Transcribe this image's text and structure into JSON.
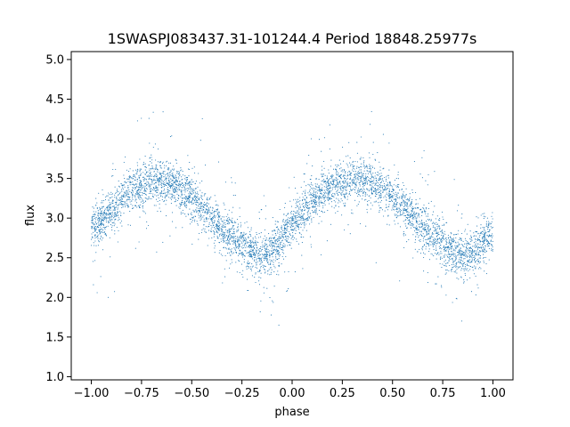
{
  "chart_data": {
    "type": "scatter",
    "title": "1SWASPJ083437.31-101244.4 Period 18848.25977s",
    "xlabel": "phase",
    "ylabel": "flux",
    "xlim": [
      -1.1,
      1.1
    ],
    "ylim": [
      0.96,
      5.1
    ],
    "x_ticks": [
      -1.0,
      -0.75,
      -0.5,
      -0.25,
      0.0,
      0.25,
      0.5,
      0.75,
      1.0
    ],
    "x_tick_labels": [
      "−1.00",
      "−0.75",
      "−0.50",
      "−0.25",
      "0.00",
      "0.25",
      "0.50",
      "0.75",
      "1.00"
    ],
    "y_ticks": [
      1.0,
      1.5,
      2.0,
      2.5,
      3.0,
      3.5,
      4.0,
      4.5,
      5.0
    ],
    "y_tick_labels": [
      "1.0",
      "1.5",
      "2.0",
      "2.5",
      "3.0",
      "3.5",
      "4.0",
      "4.5",
      "5.0"
    ],
    "grid": false,
    "legend": "none",
    "point_color": "#1f77b4",
    "trend": {
      "description_of_shape": "phase-folded sinusoid",
      "x": [
        -1.0,
        -0.9,
        -0.8,
        -0.7,
        -0.6,
        -0.5,
        -0.4,
        -0.3,
        -0.2,
        -0.15,
        -0.1,
        0.0,
        0.1,
        0.2,
        0.3,
        0.4,
        0.5,
        0.6,
        0.7,
        0.8,
        0.85,
        0.9,
        1.0
      ],
      "y": [
        2.85,
        3.1,
        3.35,
        3.48,
        3.45,
        3.25,
        3.0,
        2.75,
        2.57,
        2.53,
        2.58,
        2.9,
        3.2,
        3.4,
        3.5,
        3.45,
        3.25,
        3.0,
        2.75,
        2.57,
        2.53,
        2.58,
        2.82
      ],
      "scatter_sd": 0.13
    }
  }
}
